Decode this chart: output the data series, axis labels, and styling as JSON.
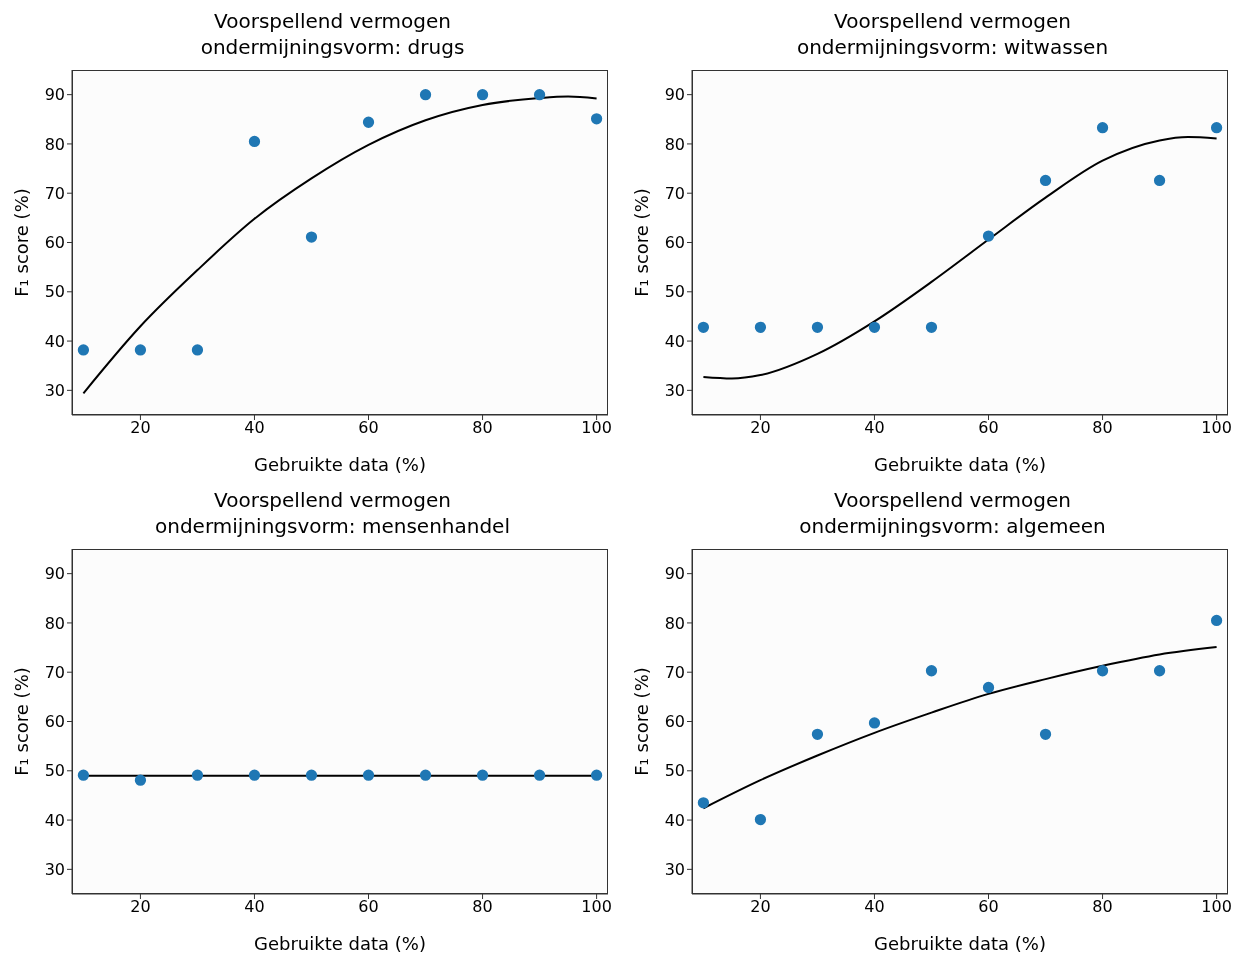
{
  "chart_data": [
    {
      "type": "scatter",
      "title": "Voorspellend vermogen\nondermijningsvorm: drugs",
      "xlabel": "Gebruikte data (%)",
      "ylabel": "F₁ score (%)",
      "xlim": [
        8,
        102
      ],
      "ylim": [
        25,
        95
      ],
      "xticks": [
        20,
        40,
        60,
        80,
        100
      ],
      "yticks": [
        30,
        40,
        50,
        60,
        70,
        80,
        90
      ],
      "series": [
        {
          "marker": "circle",
          "color": "#1f77b4",
          "x": [
            10,
            20,
            30,
            40,
            50,
            60,
            70,
            80,
            90,
            100
          ],
          "values": [
            38.2,
            38.2,
            38.2,
            80.5,
            61.1,
            84.4,
            90,
            90,
            90,
            85.1
          ]
        },
        {
          "type": "line",
          "marker": "none",
          "color": "#000000",
          "x": [
            10,
            20,
            30,
            40,
            50,
            60,
            70,
            80,
            90,
            95,
            100
          ],
          "values": [
            29.4,
            43,
            54.4,
            64.8,
            73,
            79.8,
            84.8,
            87.9,
            89.3,
            89.6,
            89.2
          ]
        }
      ]
    },
    {
      "type": "scatter",
      "title": "Voorspellend vermogen\nondermijningsvorm: witwassen",
      "xlabel": "Gebruikte data (%)",
      "ylabel": "F₁ score (%)",
      "xlim": [
        8,
        102
      ],
      "ylim": [
        25,
        95
      ],
      "xticks": [
        20,
        40,
        60,
        80,
        100
      ],
      "yticks": [
        30,
        40,
        50,
        60,
        70,
        80,
        90
      ],
      "series": [
        {
          "marker": "circle",
          "color": "#1f77b4",
          "x": [
            10,
            20,
            30,
            40,
            50,
            60,
            70,
            80,
            90,
            100
          ],
          "values": [
            42.8,
            42.8,
            42.8,
            42.8,
            42.8,
            61.3,
            72.6,
            83.3,
            72.6,
            83.3
          ]
        },
        {
          "type": "line",
          "marker": "none",
          "color": "#000000",
          "x": [
            10,
            15,
            20,
            30,
            40,
            50,
            60,
            70,
            80,
            90,
            95,
            100
          ],
          "values": [
            32.7,
            32.4,
            33.1,
            37.4,
            44,
            52,
            60.6,
            69.1,
            76.6,
            80.7,
            81.4,
            81.1
          ]
        }
      ]
    },
    {
      "type": "scatter",
      "title": "Voorspellend vermogen\nondermijningsvorm: mensenhandel",
      "xlabel": "Gebruikte data (%)",
      "ylabel": "F₁ score (%)",
      "xlim": [
        8,
        102
      ],
      "ylim": [
        25,
        95
      ],
      "xticks": [
        20,
        40,
        60,
        80,
        100
      ],
      "yticks": [
        30,
        40,
        50,
        60,
        70,
        80,
        90
      ],
      "series": [
        {
          "marker": "circle",
          "color": "#1f77b4",
          "x": [
            10,
            20,
            30,
            40,
            50,
            60,
            70,
            80,
            90,
            100
          ],
          "values": [
            49.1,
            48.1,
            49.1,
            49.1,
            49.1,
            49.1,
            49.1,
            49.1,
            49.1,
            49.1
          ]
        },
        {
          "type": "line",
          "marker": "none",
          "color": "#000000",
          "x": [
            10,
            100
          ],
          "values": [
            49,
            49
          ]
        }
      ]
    },
    {
      "type": "scatter",
      "title": "Voorspellend vermogen\nondermijningsvorm: algemeen",
      "xlabel": "Gebruikte data (%)",
      "ylabel": "F₁ score (%)",
      "xlim": [
        8,
        102
      ],
      "ylim": [
        25,
        95
      ],
      "xticks": [
        20,
        40,
        60,
        80,
        100
      ],
      "yticks": [
        30,
        40,
        50,
        60,
        70,
        80,
        90
      ],
      "series": [
        {
          "marker": "circle",
          "color": "#1f77b4",
          "x": [
            10,
            20,
            30,
            40,
            50,
            60,
            70,
            80,
            90,
            100
          ],
          "values": [
            43.5,
            40.1,
            57.4,
            59.7,
            70.3,
            66.9,
            57.4,
            70.3,
            70.3,
            80.5
          ]
        },
        {
          "type": "line",
          "marker": "none",
          "color": "#000000",
          "x": [
            10,
            20,
            30,
            40,
            50,
            60,
            70,
            80,
            90,
            100
          ],
          "values": [
            42.4,
            48.1,
            53.1,
            57.7,
            61.8,
            65.6,
            68.6,
            71.3,
            73.6,
            75.1
          ]
        }
      ]
    }
  ]
}
